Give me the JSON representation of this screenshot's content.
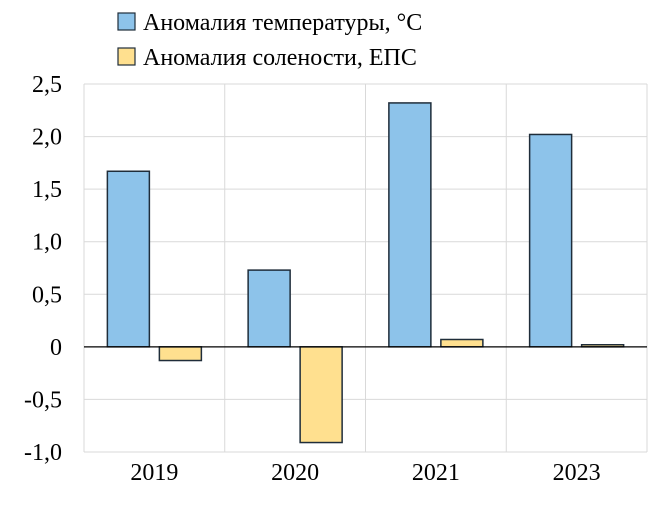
{
  "chart_data": {
    "type": "bar",
    "title": "",
    "xlabel": "",
    "ylabel": "",
    "categories": [
      "2019",
      "2020",
      "2021",
      "2023"
    ],
    "series": [
      {
        "name": "Аномалия температуры, °С",
        "values": [
          1.67,
          0.73,
          2.32,
          2.02
        ],
        "color": "#8DC3EA"
      },
      {
        "name": "Аномалия солености, ЕПС",
        "values": [
          -0.13,
          -0.91,
          0.07,
          0.02
        ],
        "color": "#FFE08F"
      }
    ],
    "ylim": [
      -1.0,
      2.5
    ],
    "yticks": [
      2.5,
      2.0,
      1.5,
      1.0,
      0.5,
      0,
      -0.5,
      -1.0
    ],
    "ytick_labels": [
      "2,5",
      "2,0",
      "1,5",
      "1,0",
      "0,5",
      "0",
      "-0,5",
      "-1,0"
    ],
    "grid": true,
    "legend_position": "top"
  }
}
